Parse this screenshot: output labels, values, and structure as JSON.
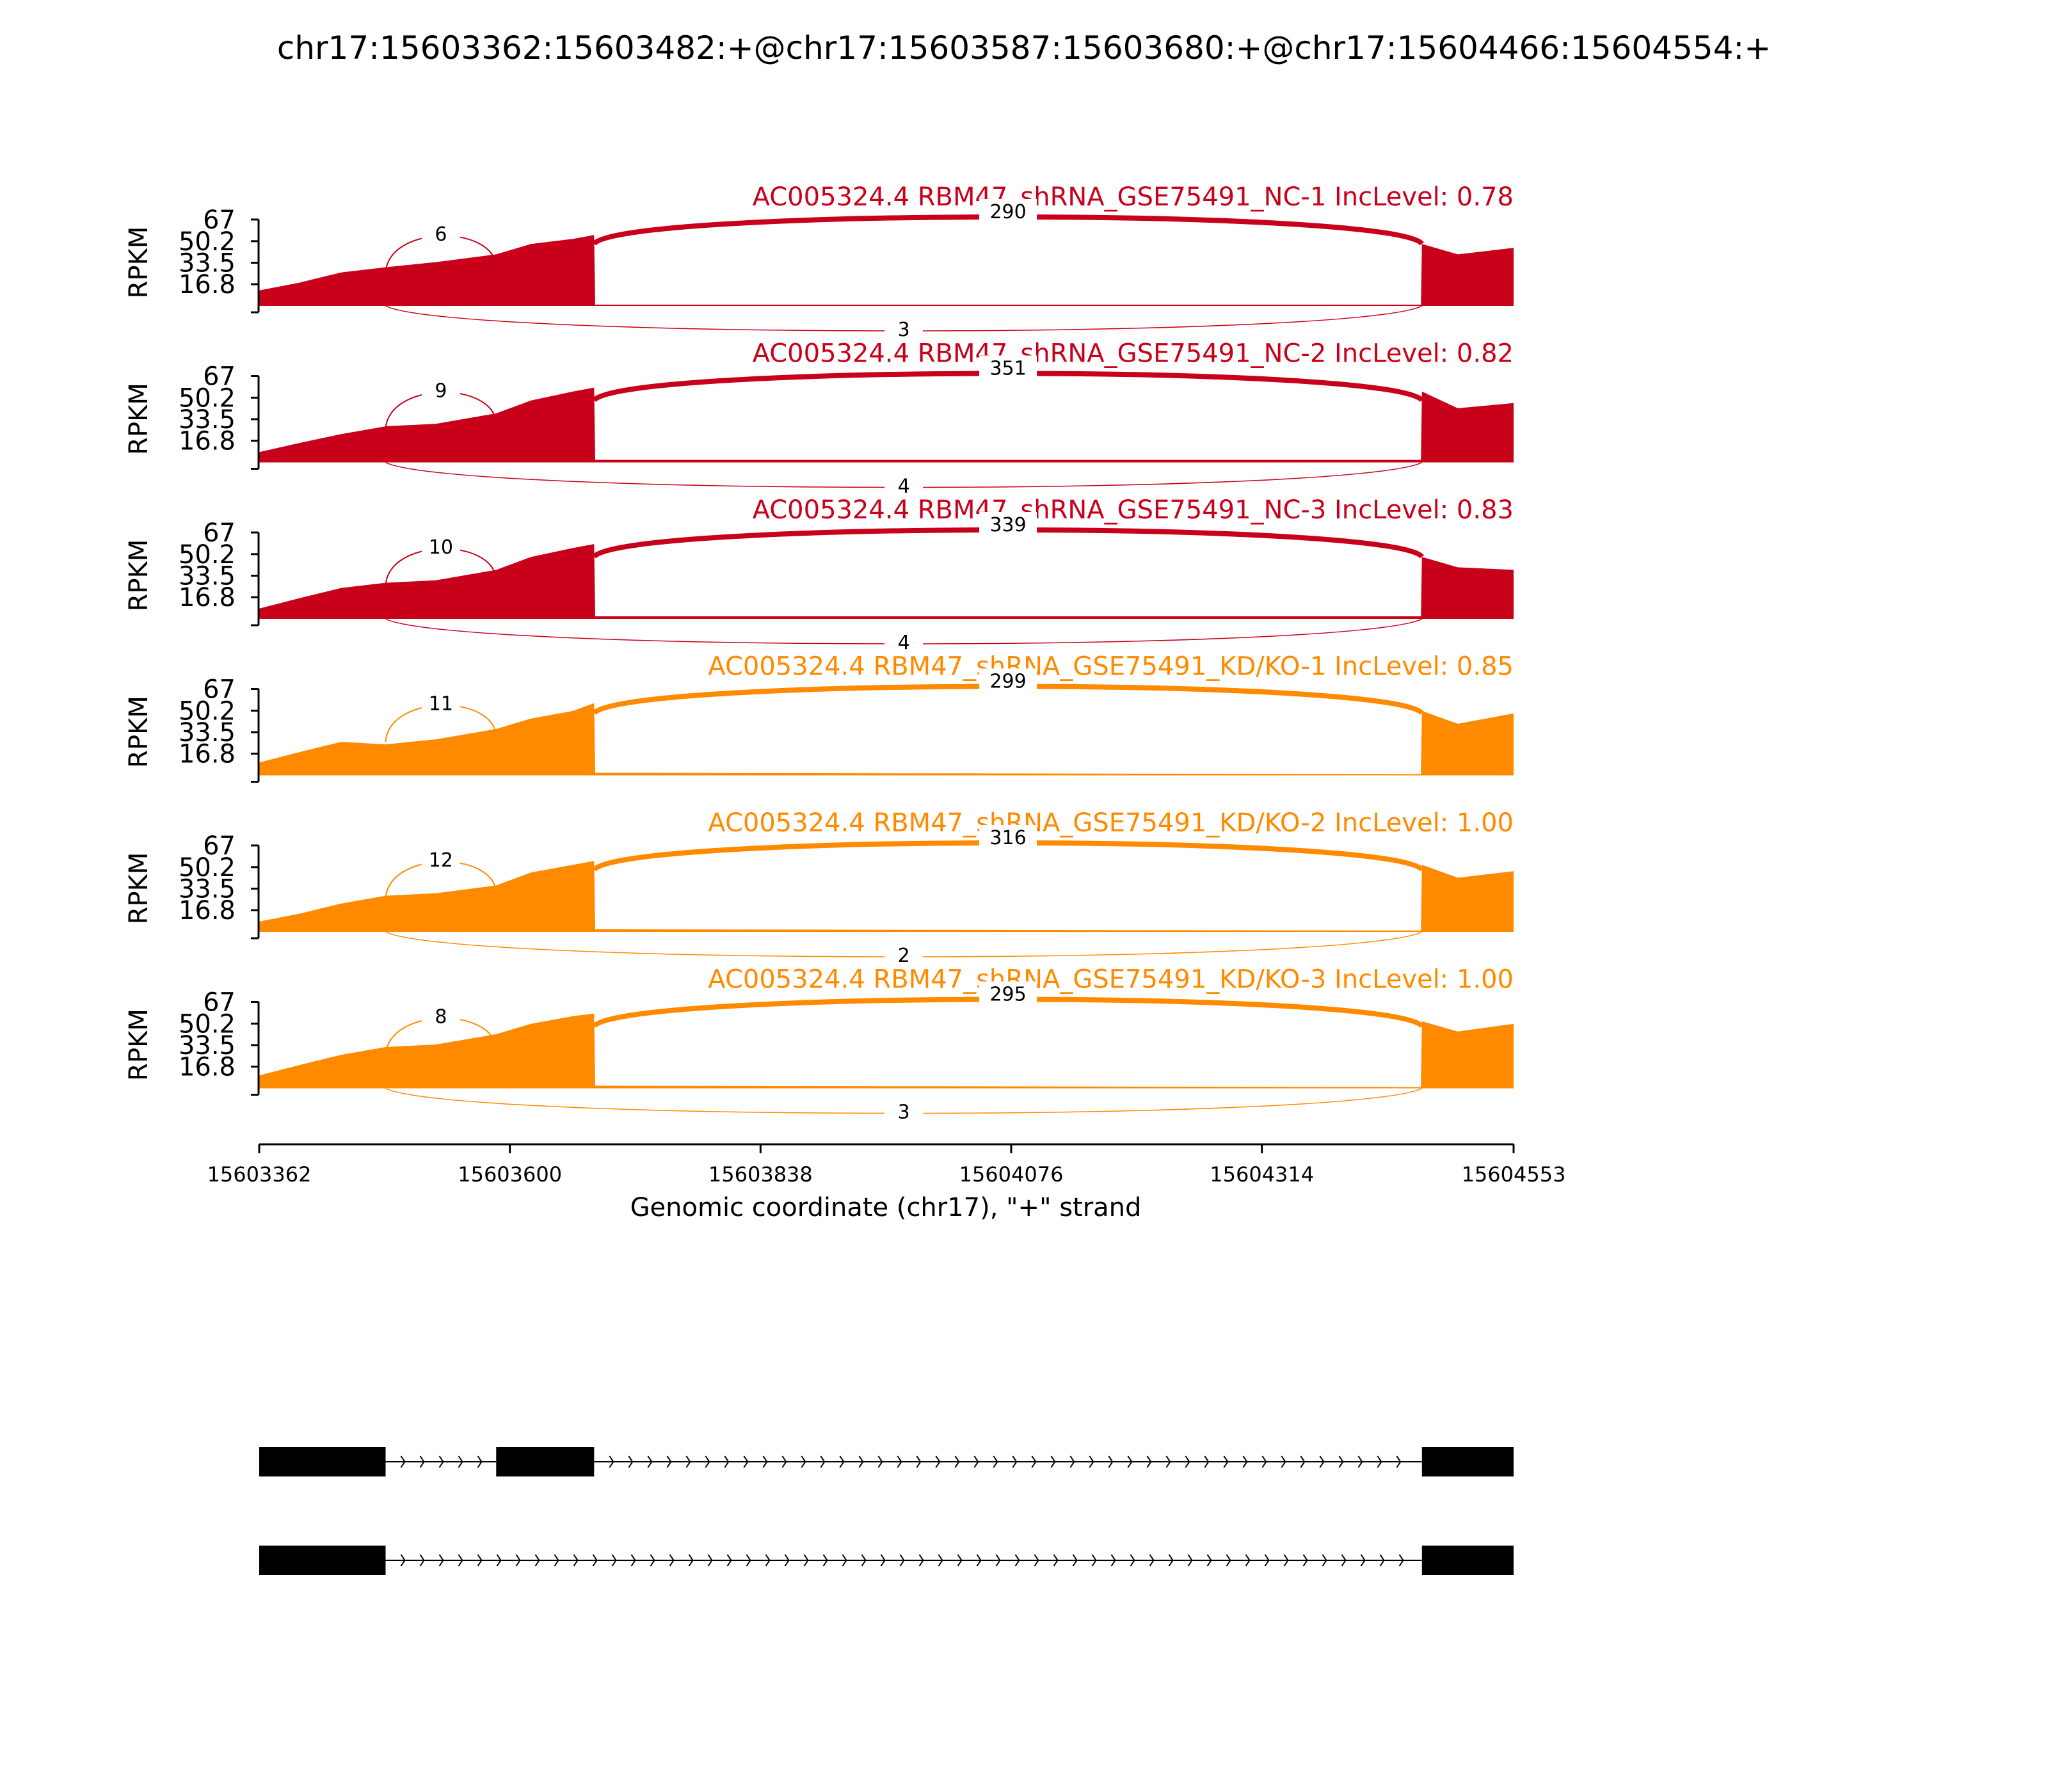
{
  "title": "chr17:15603362:15603482:+@chr17:15603587:15603680:+@chr17:15604466:15604554:+",
  "colors": {
    "nc": "#C8001A",
    "kd": "#FF8A00",
    "axis": "#000000"
  },
  "chart_data": {
    "type": "area",
    "title": "chr17:15603362:15603482:+@chr17:15603587:15603680:+@chr17:15604466:15604554:+",
    "xlabel": "Genomic coordinate (chr17), \"+\" strand",
    "ylabel": "RPKM",
    "xlim": [
      15603362,
      15604553
    ],
    "x_ticks": [
      "15603362",
      "15603600",
      "15603838",
      "15604076",
      "15604314",
      "15604553"
    ],
    "ylim": [
      0,
      67
    ],
    "y_ticks": [
      "16.8",
      "33.5",
      "50.2",
      "67"
    ],
    "exons": [
      [
        15603362,
        15603482
      ],
      [
        15603587,
        15603680
      ],
      [
        15604466,
        15604553
      ]
    ],
    "coverage_x": [
      15603362,
      15603400,
      15603440,
      15603482,
      15603530,
      15603587,
      15603620,
      15603660,
      15603680,
      15603681,
      15604465,
      15604466,
      15604500,
      15604553
    ],
    "series": [
      {
        "name": "AC005324.4 RBM47_shRNA_GSE75491_NC-1 IncLevel: 0.78",
        "group": "nc",
        "junctions": {
          "upper_inclusion": 6,
          "main": 290,
          "skip": 3
        },
        "coverage": [
          12,
          18,
          26,
          30,
          34,
          40,
          48,
          52,
          55,
          1,
          1,
          48,
          40,
          45
        ]
      },
      {
        "name": "AC005324.4 RBM47_shRNA_GSE75491_NC-2 IncLevel: 0.82",
        "group": "nc",
        "junctions": {
          "upper_inclusion": 9,
          "main": 351,
          "skip": 4
        },
        "coverage": [
          8,
          15,
          22,
          28,
          30,
          38,
          48,
          55,
          58,
          2,
          2,
          55,
          42,
          46
        ]
      },
      {
        "name": "AC005324.4 RBM47_shRNA_GSE75491_NC-3 IncLevel: 0.83",
        "group": "nc",
        "junctions": {
          "upper_inclusion": 10,
          "main": 339,
          "skip": 4
        },
        "coverage": [
          8,
          16,
          24,
          28,
          30,
          38,
          48,
          55,
          58,
          2,
          2,
          48,
          40,
          38
        ]
      },
      {
        "name": "AC005324.4 RBM47_shRNA_GSE75491_KD/KO-1 IncLevel: 0.85",
        "group": "kd",
        "junctions": {
          "upper_inclusion": 11,
          "main": 299,
          "skip": 0
        },
        "coverage": [
          10,
          18,
          26,
          24,
          28,
          36,
          44,
          50,
          56,
          2,
          1,
          50,
          40,
          48
        ]
      },
      {
        "name": "AC005324.4 RBM47_shRNA_GSE75491_KD/KO-2 IncLevel: 1.00",
        "group": "kd",
        "junctions": {
          "upper_inclusion": 12,
          "main": 316,
          "skip": 2
        },
        "coverage": [
          8,
          14,
          22,
          28,
          30,
          36,
          46,
          52,
          55,
          2,
          1,
          52,
          42,
          47
        ]
      },
      {
        "name": "AC005324.4 RBM47_shRNA_GSE75491_KD/KO-3 IncLevel: 1.00",
        "group": "kd",
        "junctions": {
          "upper_inclusion": 8,
          "main": 295,
          "skip": 3
        },
        "coverage": [
          10,
          18,
          26,
          32,
          34,
          42,
          50,
          56,
          58,
          2,
          1,
          52,
          44,
          50
        ]
      }
    ],
    "isoforms": [
      {
        "exons": [
          [
            15603362,
            15603482
          ],
          [
            15603587,
            15603680
          ],
          [
            15604466,
            15604553
          ]
        ]
      },
      {
        "exons": [
          [
            15603362,
            15603482
          ],
          [
            15604466,
            15604553
          ]
        ]
      }
    ],
    "legend": "none",
    "grid": false
  }
}
